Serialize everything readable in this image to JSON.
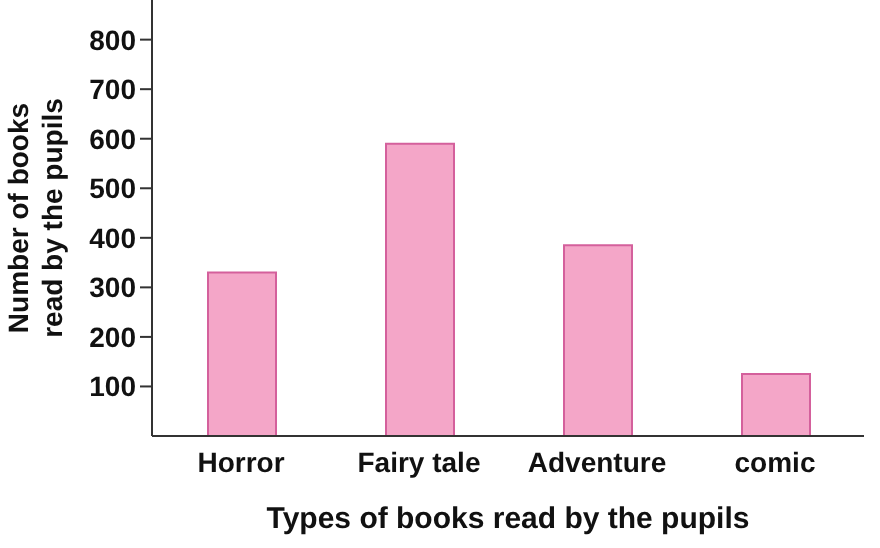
{
  "chart_data": {
    "type": "bar",
    "xlabel": "Types of books read by the pupils",
    "ylabel": "Number of books\nread by the pupils",
    "categories": [
      "Horror",
      "Fairy tale",
      "Adventure",
      "comic"
    ],
    "values": [
      330,
      590,
      385,
      125
    ],
    "color": "#f4a6c8",
    "ylim": [
      0,
      880
    ],
    "yticks": [
      100,
      200,
      300,
      400,
      500,
      600,
      700,
      800
    ],
    "grid": false,
    "legend": false
  }
}
